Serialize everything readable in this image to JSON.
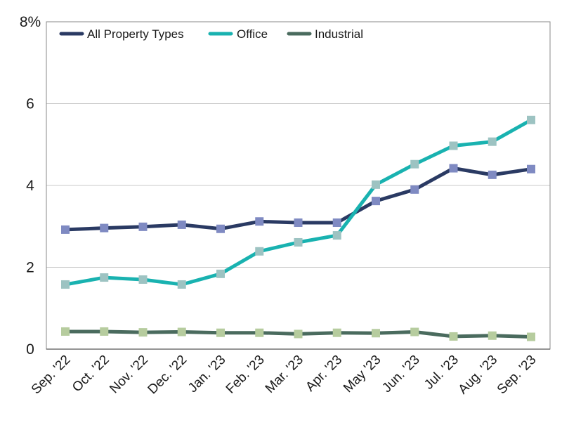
{
  "chart_data": {
    "type": "line",
    "title": "",
    "xlabel": "",
    "ylabel": "",
    "ylim": [
      0,
      8
    ],
    "yticks": [
      0,
      2,
      4,
      6,
      8
    ],
    "ytick_labels": [
      "0",
      "2",
      "4",
      "6",
      "8%"
    ],
    "grid": "horizontal",
    "legend_position": "top-left",
    "categories": [
      "Sep. '22",
      "Oct. '22",
      "Nov. '22",
      "Dec. '22",
      "Jan. '23",
      "Feb. '23",
      "Mar. '23",
      "Apr. '23",
      "May '23",
      "Jun. '23",
      "Jul. '23",
      "Aug. '23",
      "Sep. '23"
    ],
    "series": [
      {
        "name": "All Property Types",
        "color": "#2a3a63",
        "marker_color": "#7f8ac2",
        "values": [
          2.92,
          2.96,
          2.99,
          3.04,
          2.94,
          3.12,
          3.09,
          3.09,
          3.62,
          3.9,
          4.42,
          4.26,
          4.4
        ]
      },
      {
        "name": "Office",
        "color": "#19b2b0",
        "marker_color": "#9dc3c2",
        "values": [
          1.58,
          1.75,
          1.7,
          1.58,
          1.84,
          2.39,
          2.61,
          2.78,
          4.02,
          4.52,
          4.97,
          5.07,
          5.6
        ]
      },
      {
        "name": "Industrial",
        "color": "#4a6b5e",
        "marker_color": "#b6cc9e",
        "values": [
          0.43,
          0.43,
          0.41,
          0.42,
          0.4,
          0.4,
          0.37,
          0.4,
          0.39,
          0.42,
          0.31,
          0.33,
          0.3
        ]
      }
    ]
  }
}
